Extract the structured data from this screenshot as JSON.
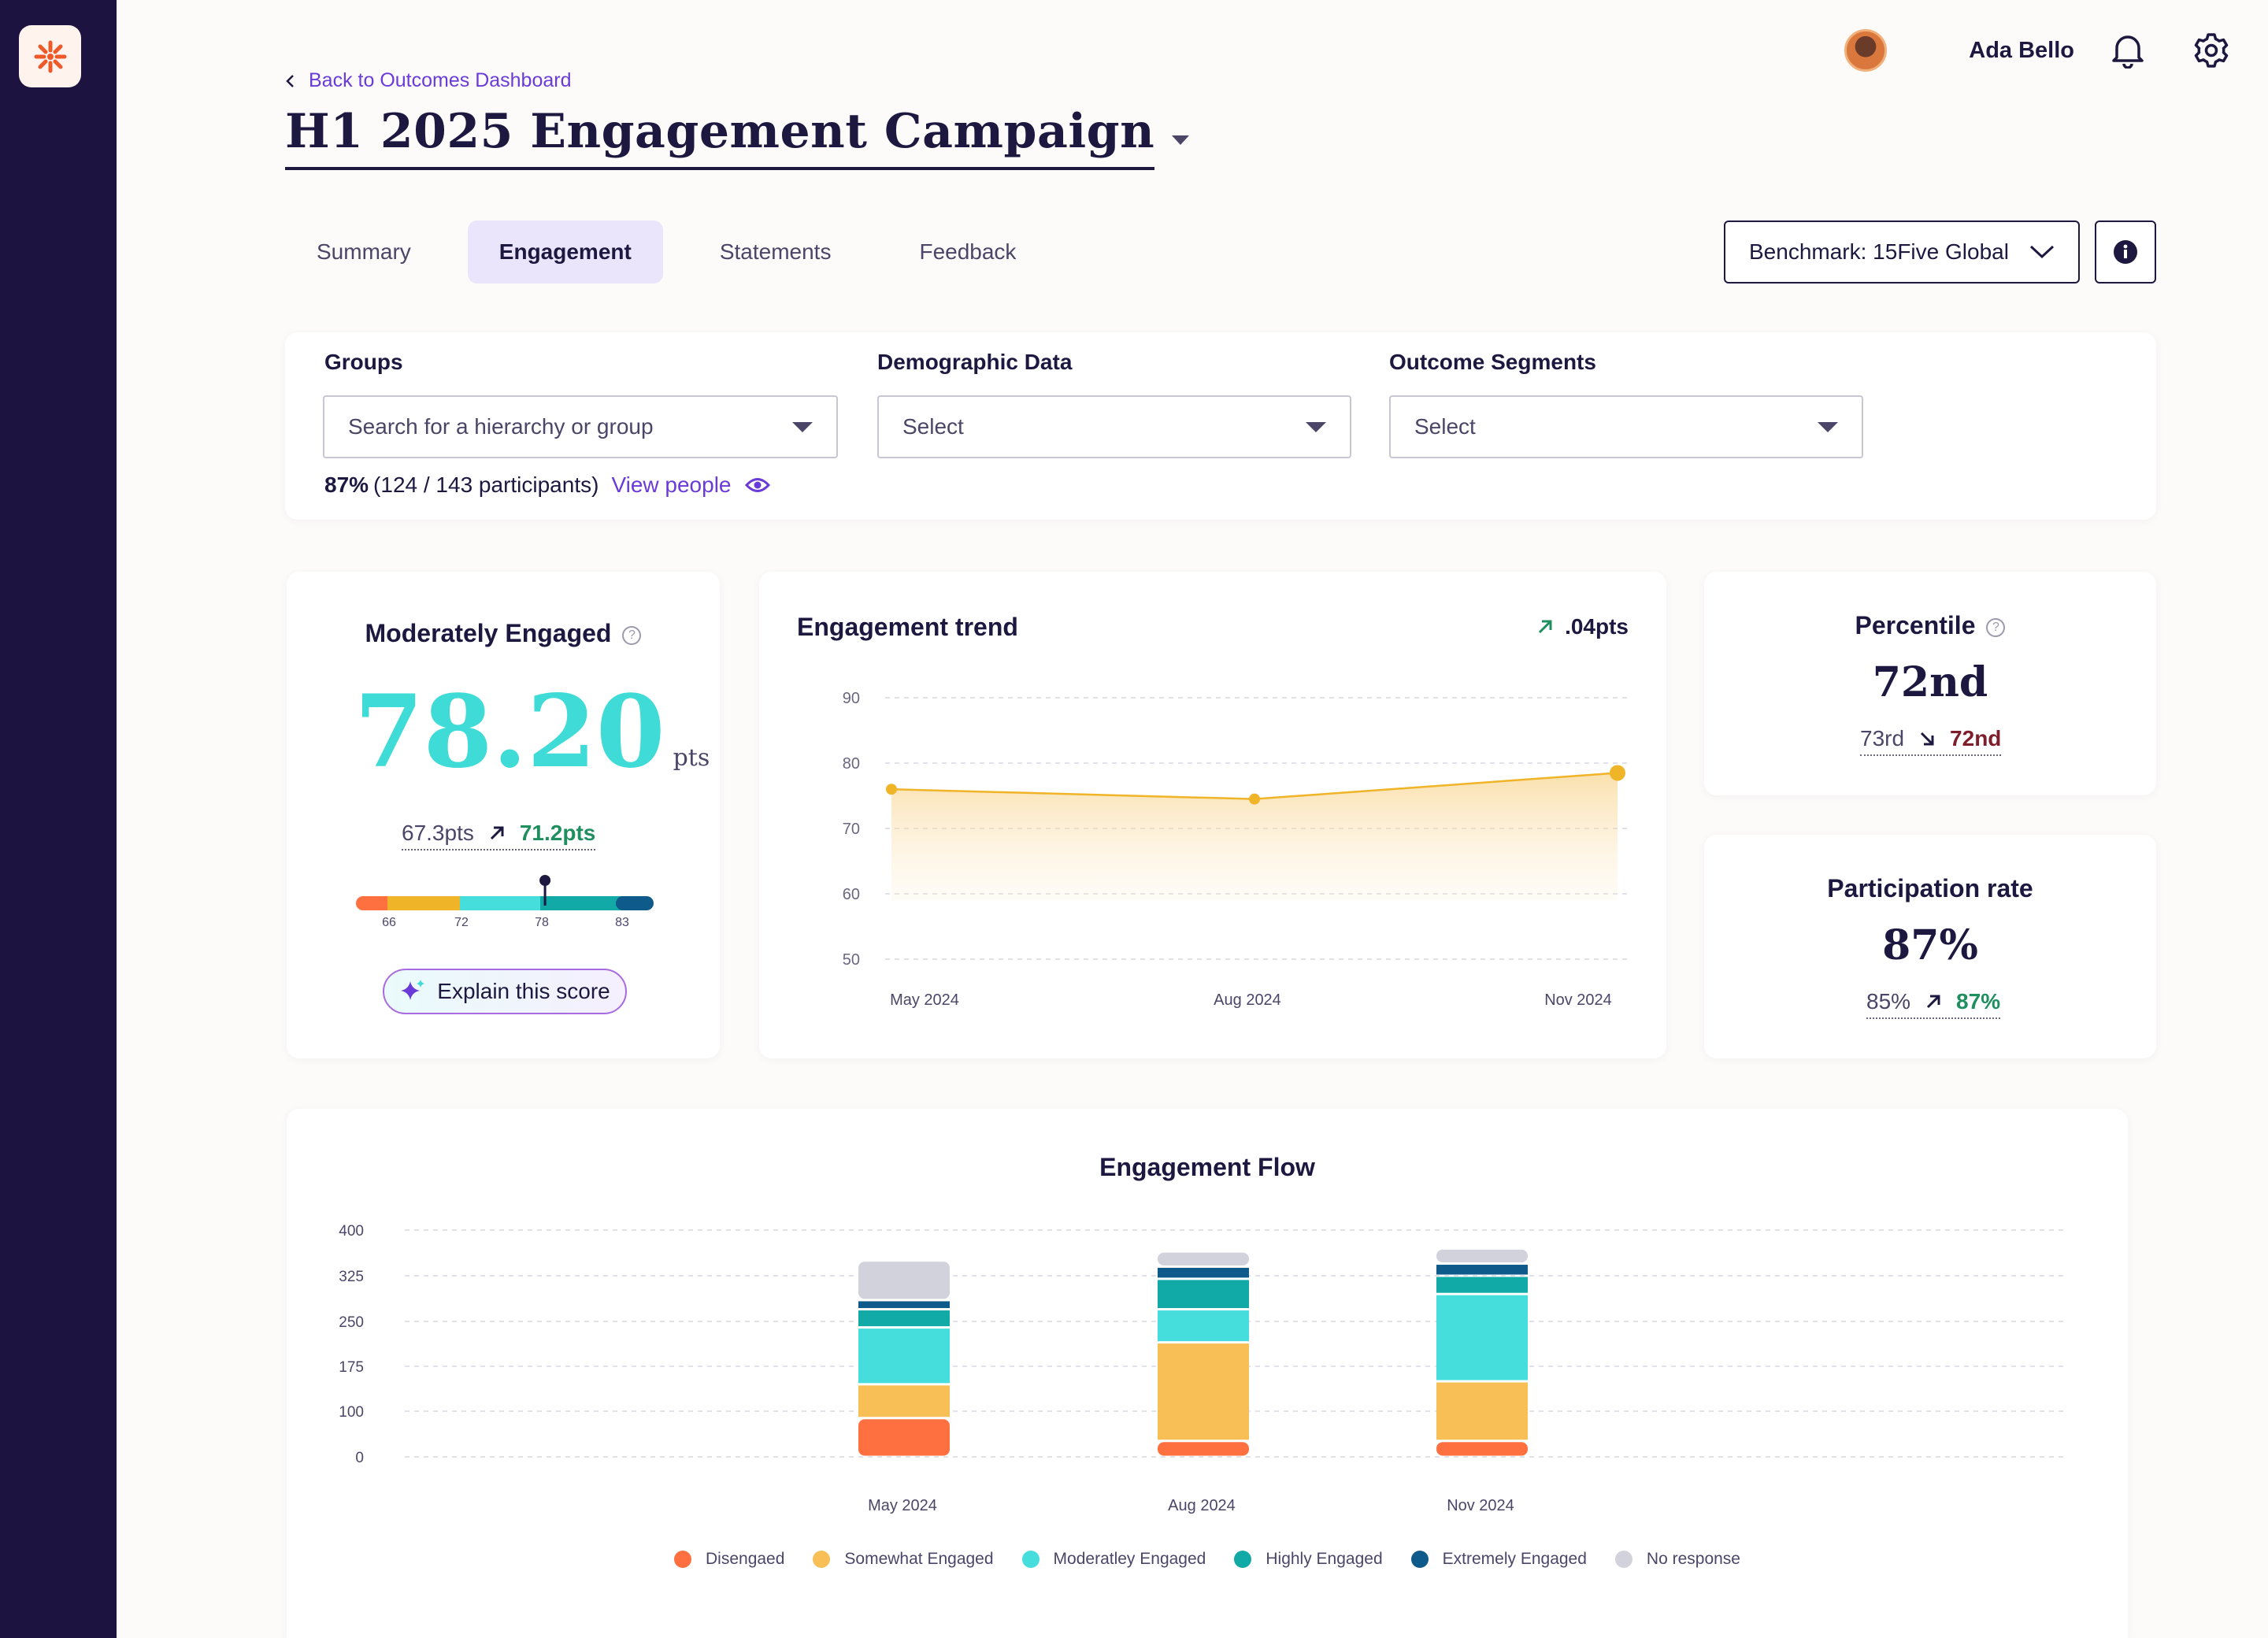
{
  "user": {
    "name": "Ada Bello"
  },
  "header": {
    "back_link": "Back to Outcomes Dashboard",
    "title": "H1 2025 Engagement Campaign"
  },
  "tabs": [
    {
      "label": "Summary",
      "active": false
    },
    {
      "label": "Engagement",
      "active": true
    },
    {
      "label": "Statements",
      "active": false
    },
    {
      "label": "Feedback",
      "active": false
    }
  ],
  "benchmark": {
    "label": "Benchmark: 15Five Global"
  },
  "filters": {
    "groups": {
      "label": "Groups",
      "placeholder": "Search for a hierarchy or group"
    },
    "demographic": {
      "label": "Demographic Data",
      "value": "Select"
    },
    "segments": {
      "label": "Outcome Segments",
      "value": "Select"
    },
    "participation_pct": "87%",
    "participation_detail": "(124 / 143 participants)",
    "view_people": "View people"
  },
  "score": {
    "title": "Moderately Engaged",
    "value": "78.20",
    "unit": "pts",
    "previous": "67.3pts",
    "benchmark": "71.2pts",
    "gauge_ticks": [
      "66",
      "72",
      "78",
      "83"
    ],
    "gauge_value": 78.2,
    "explain_label": "Explain this score"
  },
  "trend": {
    "title": "Engagement trend",
    "delta": ".04pts"
  },
  "percentile": {
    "title": "Percentile",
    "value": "72nd",
    "previous": "73rd",
    "current": "72nd"
  },
  "participation": {
    "title": "Participation rate",
    "value": "87%",
    "previous": "85%",
    "current": "87%"
  },
  "flow": {
    "title": "Engagement Flow"
  },
  "colors": {
    "accent_purple": "#6a3bd8",
    "teal_score": "#3fdbd6",
    "up_green": "#1f8f5f",
    "down_red": "#7e1d2b",
    "trend_line": "#f0b429"
  },
  "chart_data": [
    {
      "type": "area",
      "title": "Engagement trend",
      "x": [
        "May 2024",
        "Aug 2024",
        "Nov 2024"
      ],
      "series": [
        {
          "values": [
            76,
            74.5,
            78.5
          ]
        }
      ],
      "ylim": [
        50,
        90
      ],
      "yticks": [
        50,
        60,
        70,
        80,
        90
      ],
      "grid": true
    },
    {
      "type": "bar",
      "stacked": true,
      "title": "Engagement Flow",
      "categories": [
        "May 2024",
        "Aug 2024",
        "Nov 2024"
      ],
      "yticks": [
        0,
        100,
        175,
        250,
        325,
        400
      ],
      "ylim": [
        0,
        400
      ],
      "grid": true,
      "legend": "bottom",
      "series": [
        {
          "name": "Disengaed",
          "color": "#ff7040",
          "values": [
            85,
            35,
            35
          ]
        },
        {
          "name": "Somewhat Engaged",
          "color": "#f7bf55",
          "values": [
            60,
            180,
            115
          ]
        },
        {
          "name": "Moderatley Engaged",
          "color": "#45dedd",
          "values": [
            95,
            55,
            145
          ]
        },
        {
          "name": "Highly Engaged",
          "color": "#12aaa6",
          "values": [
            30,
            50,
            30
          ]
        },
        {
          "name": "Extremely Engaged",
          "color": "#0e5a8a",
          "values": [
            15,
            20,
            20
          ]
        },
        {
          "name": "No response",
          "color": "#d2d2dc",
          "values": [
            65,
            25,
            25
          ]
        }
      ]
    }
  ]
}
